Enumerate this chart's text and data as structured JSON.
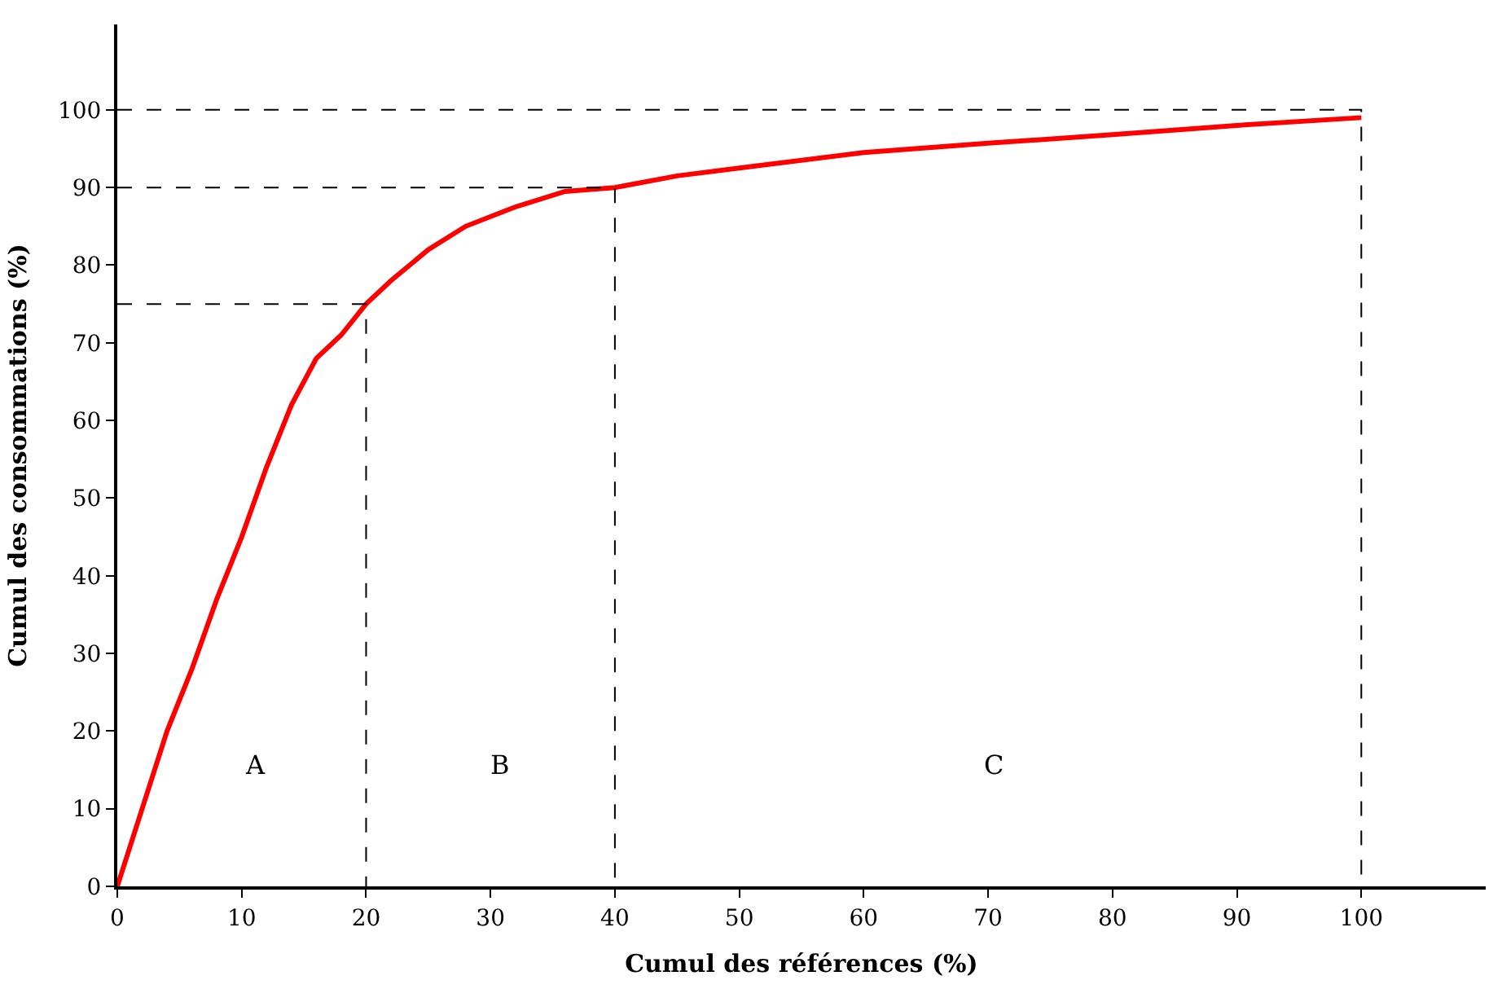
{
  "chart_data": {
    "type": "line",
    "xlabel": "Cumul des références (%)",
    "ylabel": "Cumul des consommations (%)",
    "xlim": [
      0,
      110
    ],
    "ylim": [
      0,
      111
    ],
    "xticks": [
      0,
      10,
      20,
      30,
      40,
      50,
      60,
      70,
      80,
      90,
      100
    ],
    "yticks": [
      0,
      10,
      20,
      30,
      40,
      50,
      60,
      70,
      80,
      90,
      100
    ],
    "marker": "none",
    "series": [
      {
        "color": "#ff0000",
        "line_style": "solid",
        "x": [
          0,
          2,
          4,
          6,
          8,
          10,
          12,
          14,
          16,
          18,
          20,
          22,
          25,
          28,
          32,
          36,
          40,
          45,
          50,
          60,
          70,
          80,
          90,
          100
        ],
        "values": [
          0,
          10,
          20,
          28,
          37,
          45,
          54,
          62,
          68,
          71,
          75,
          78,
          82,
          85,
          87.5,
          89.5,
          90,
          91.5,
          92.5,
          94.5,
          95.7,
          96.8,
          98,
          99
        ]
      },
      {
        "color": "#000000",
        "line_style": "dashed",
        "x": [
          0,
          20,
          20
        ],
        "values": [
          75,
          75,
          0
        ]
      },
      {
        "color": "#000000",
        "line_style": "dashed",
        "x": [
          0,
          40,
          40
        ],
        "values": [
          90,
          90,
          0
        ]
      },
      {
        "color": "#000000",
        "line_style": "dashed",
        "x": [
          0,
          100,
          100
        ],
        "values": [
          100,
          100,
          0
        ]
      }
    ],
    "annotations": [
      "A",
      "B",
      "C"
    ]
  }
}
